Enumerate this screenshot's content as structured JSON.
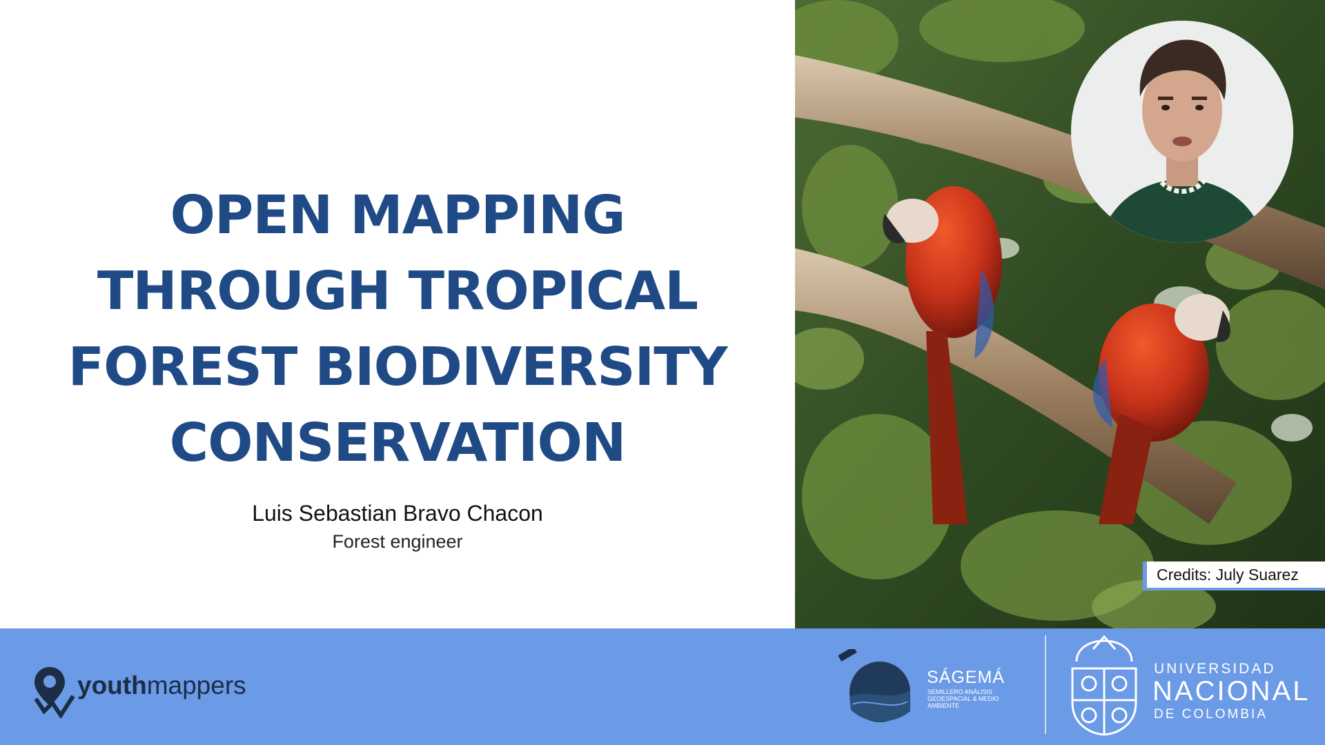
{
  "slide": {
    "title_lines": [
      "OPEN MAPPING",
      "THROUGH TROPICAL",
      "FOREST BIODIVERSITY",
      "CONSERVATION"
    ],
    "author": "Luis Sebastian Bravo Chacon",
    "role": "Forest engineer"
  },
  "photo": {
    "credit": "Credits: July Suarez",
    "subject": "scarlet-macaws-icon"
  },
  "footer": {
    "youthmappers": {
      "bold": "youth",
      "regular": "mappers"
    },
    "sagema": {
      "name": "SÁGEMÁ",
      "subtitle": "Semillero Análisis Geoespacial & Medio Ambiente"
    },
    "unal": {
      "line1": "UNIVERSIDAD",
      "line2": "NACIONAL",
      "line3": "DE COLOMBIA"
    }
  },
  "colors": {
    "title": "#1f4a86",
    "footer_bg": "#6b9ae6",
    "macaw_red": "#c8321a"
  }
}
